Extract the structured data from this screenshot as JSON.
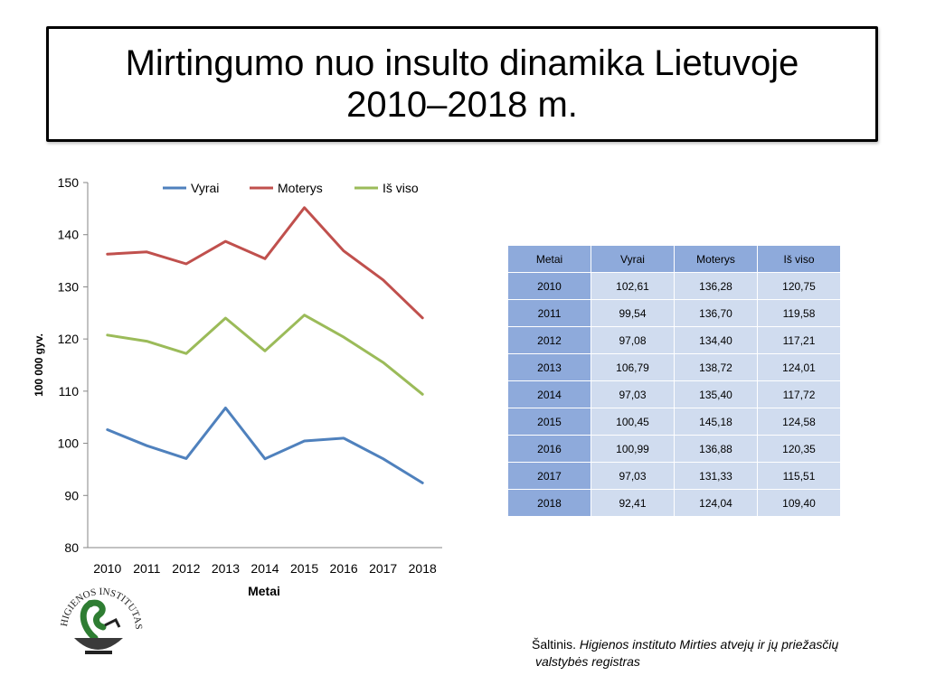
{
  "slide": {
    "title_line1": "Mirtingumo nuo insulto dinamika Lietuvoje",
    "title_line2": "2010–2018 m."
  },
  "chart_data": {
    "type": "line",
    "categories": [
      "2010",
      "2011",
      "2012",
      "2013",
      "2014",
      "2015",
      "2016",
      "2017",
      "2018"
    ],
    "series": [
      {
        "name": "Vyrai",
        "color": "#4f81bd",
        "values": [
          102.61,
          99.54,
          97.08,
          106.79,
          97.03,
          100.45,
          100.99,
          97.03,
          92.41
        ]
      },
      {
        "name": "Moterys",
        "color": "#c0504d",
        "values": [
          136.28,
          136.7,
          134.4,
          138.72,
          135.4,
          145.18,
          136.88,
          131.33,
          124.04
        ]
      },
      {
        "name": "Iš viso",
        "color": "#9bbb59",
        "values": [
          120.75,
          119.58,
          117.21,
          124.01,
          117.72,
          124.58,
          120.35,
          115.51,
          109.4
        ]
      }
    ],
    "xlabel": "Metai",
    "ylabel": "100 000 gyv.",
    "ylim": [
      80,
      150
    ],
    "yticks": [
      80,
      90,
      100,
      110,
      120,
      130,
      140,
      150
    ],
    "grid": false,
    "legend": "top"
  },
  "table": {
    "headers": [
      "Metai",
      "Vyrai",
      "Moterys",
      "Iš viso"
    ],
    "rows": [
      [
        "2010",
        "102,61",
        "136,28",
        "120,75"
      ],
      [
        "2011",
        "99,54",
        "136,70",
        "119,58"
      ],
      [
        "2012",
        "97,08",
        "134,40",
        "117,21"
      ],
      [
        "2013",
        "106,79",
        "138,72",
        "124,01"
      ],
      [
        "2014",
        "97,03",
        "135,40",
        "117,72"
      ],
      [
        "2015",
        "100,45",
        "145,18",
        "124,58"
      ],
      [
        "2016",
        "100,99",
        "136,88",
        "120,35"
      ],
      [
        "2017",
        "97,03",
        "131,33",
        "115,51"
      ],
      [
        "2018",
        "92,41",
        "124,04",
        "109,40"
      ]
    ]
  },
  "logo": {
    "text": "HIGIENOS INSTITUTAS",
    "icon": "higienos-institutas-logo"
  },
  "source": {
    "prefix": "Šaltinis. ",
    "line1_italic": "Higienos instituto  Mirties atvejų ir jų priežasčių",
    "line2_italic": "valstybės registras"
  }
}
